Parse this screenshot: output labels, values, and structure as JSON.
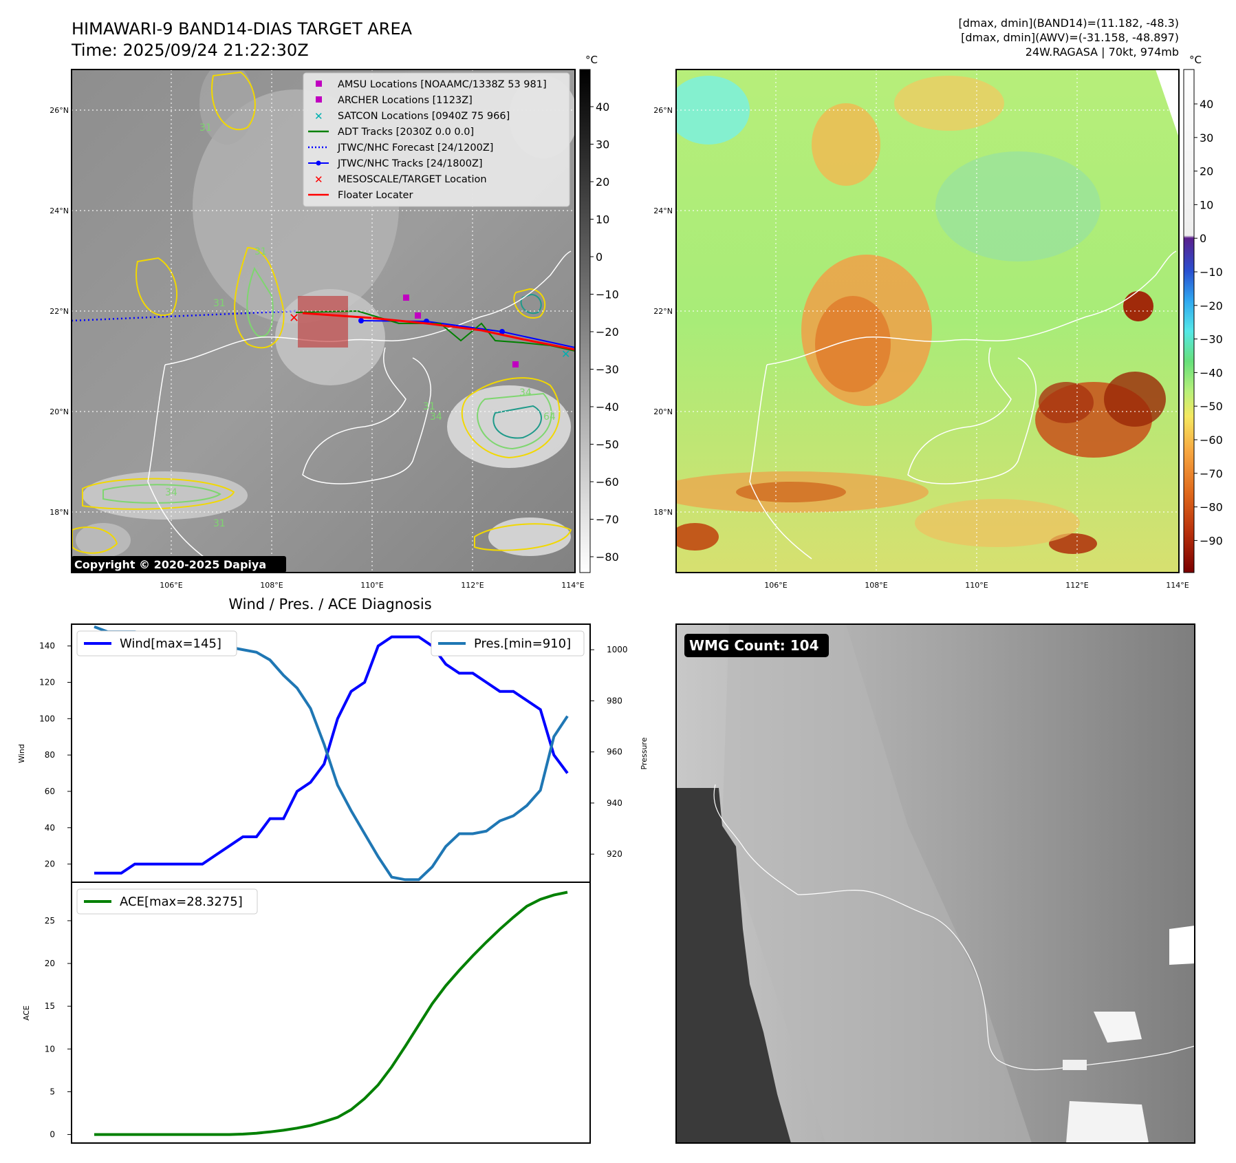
{
  "header": {
    "title_line1": "HIMAWARI-9 BAND14-DIAS TARGET AREA",
    "title_line2": "Time: 2025/09/24 21:22:30Z",
    "info_line1": "[dmax, dmin](BAND14)=(11.182, -48.3)",
    "info_line2": "[dmax, dmin](AWV)=(-31.158, -48.897)",
    "info_line3": "24W.RAGASA | 70kt, 974mb"
  },
  "map": {
    "lat_labels": [
      "26°N",
      "24°N",
      "22°N",
      "20°N",
      "18°N"
    ],
    "lon_labels": [
      "106°E",
      "108°E",
      "110°E",
      "112°E",
      "114°E"
    ],
    "copyright": "Copyright © 2020-2025 Dapiya",
    "contour_labels": [
      "31",
      "31",
      "31",
      "31",
      "31",
      "34",
      "34",
      "34",
      "64"
    ]
  },
  "legend": {
    "items": [
      {
        "label": "AMSU Locations [NOAAMC/1338Z 53 981]",
        "color": "#c000c0",
        "marker": "square"
      },
      {
        "label": "ARCHER Locations [1123Z]",
        "color": "#c000c0",
        "marker": "square"
      },
      {
        "label": "SATCON Locations [0940Z 75 966]",
        "color": "#00b0b0",
        "marker": "x"
      },
      {
        "label": "ADT Tracks [2030Z 0.0 0.0]",
        "color": "#008000",
        "marker": "line"
      },
      {
        "label": "JTWC/NHC Forecast [24/1200Z]",
        "color": "#0000ff",
        "marker": "dotted"
      },
      {
        "label": "JTWC/NHC Tracks [24/1800Z]",
        "color": "#0000ff",
        "marker": "line-dot"
      },
      {
        "label": "MESOSCALE/TARGET Location",
        "color": "#ff0000",
        "marker": "x"
      },
      {
        "label": "Floater Locater",
        "color": "#ff0000",
        "marker": "line"
      }
    ]
  },
  "colorbar_gray": {
    "unit": "°C",
    "ticks": [
      "40",
      "30",
      "20",
      "10",
      "0",
      "−10",
      "−20",
      "−30",
      "−40",
      "−50",
      "−60",
      "−70",
      "−80"
    ]
  },
  "colorbar_color": {
    "unit": "°C",
    "ticks": [
      "40",
      "30",
      "20",
      "10",
      "0",
      "−10",
      "−20",
      "−30",
      "−40",
      "−50",
      "−60",
      "−70",
      "−80",
      "−90"
    ]
  },
  "diagnosis": {
    "title": "Wind / Pres. / ACE Diagnosis",
    "wind_ylabel": "Wind",
    "pres_ylabel": "Pressure",
    "ace_ylabel": "ACE",
    "wind_legend": "Wind[max=145]",
    "pres_legend": "Pres.[min=910]",
    "ace_legend": "ACE[max=28.3275]",
    "wind_ticks": [
      "20",
      "40",
      "60",
      "80",
      "100",
      "120",
      "140"
    ],
    "pres_ticks": [
      "920",
      "940",
      "960",
      "980",
      "1000"
    ],
    "ace_ticks": [
      "0",
      "5",
      "10",
      "15",
      "20",
      "25"
    ]
  },
  "wmg": {
    "label": "WMG Count: 104"
  },
  "chart_data": [
    {
      "type": "line",
      "name": "wind",
      "ylabel": "Wind",
      "ylim": [
        10,
        152
      ],
      "series": [
        {
          "name": "Wind[max=145]",
          "color": "#0000ff",
          "values": [
            15,
            15,
            15,
            20,
            20,
            20,
            20,
            20,
            20,
            25,
            30,
            35,
            35,
            45,
            45,
            60,
            65,
            75,
            100,
            115,
            120,
            140,
            145,
            145,
            145,
            140,
            130,
            125,
            125,
            120,
            115,
            115,
            110,
            105,
            80,
            70
          ]
        }
      ]
    },
    {
      "type": "line",
      "name": "pressure",
      "ylabel": "Pressure",
      "ylim": [
        909,
        1010
      ],
      "series": [
        {
          "name": "Pres.[min=910]",
          "color": "#1f77b4",
          "values": [
            1009,
            1007,
            1007,
            1007,
            1006,
            1006,
            1006,
            1005,
            1004,
            1003,
            1001,
            1000,
            999,
            996,
            990,
            985,
            977,
            963,
            947,
            937,
            928,
            919,
            911,
            910,
            910,
            915,
            923,
            928,
            928,
            929,
            933,
            935,
            939,
            945,
            966,
            974
          ]
        }
      ]
    },
    {
      "type": "line",
      "name": "ace",
      "ylabel": "ACE",
      "ylim": [
        -1.0,
        29.5
      ],
      "series": [
        {
          "name": "ACE[max=28.3275]",
          "color": "#008000",
          "values": [
            0,
            0,
            0,
            0,
            0,
            0,
            0,
            0,
            0,
            0,
            0,
            0.05,
            0.15,
            0.3,
            0.5,
            0.75,
            1.05,
            1.5,
            2.0,
            2.9,
            4.2,
            5.8,
            7.9,
            10.3,
            12.8,
            15.3,
            17.4,
            19.2,
            20.9,
            22.5,
            24.0,
            25.4,
            26.7,
            27.5,
            28.0,
            28.33
          ]
        }
      ]
    }
  ]
}
